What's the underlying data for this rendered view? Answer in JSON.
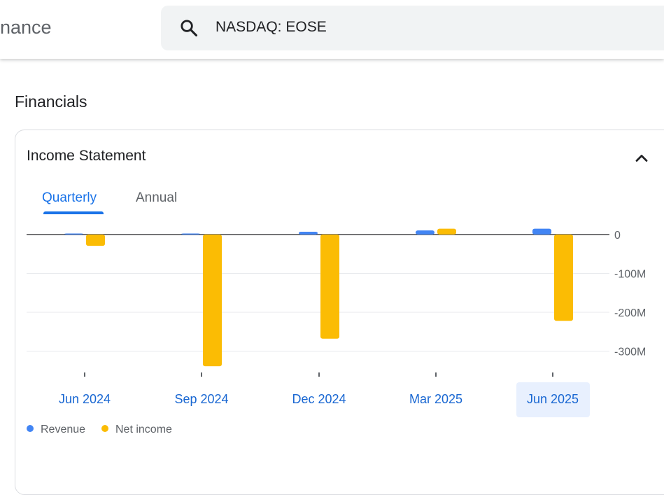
{
  "header": {
    "brand_text": "nance",
    "search_value": "NASDAQ: EOSE"
  },
  "page": {
    "section_title": "Financials"
  },
  "card": {
    "title": "Income Statement",
    "tabs": [
      {
        "label": "Quarterly",
        "selected": true
      },
      {
        "label": "Annual",
        "selected": false
      }
    ]
  },
  "colors": {
    "revenue": "#4285f4",
    "net_income": "#fbbc04",
    "accent": "#1a73e8"
  },
  "chart_data": {
    "type": "bar",
    "categories": [
      "Jun 2024",
      "Sep 2024",
      "Dec 2024",
      "Mar 2025",
      "Jun 2025"
    ],
    "selected_category": "Jun 2025",
    "series": [
      {
        "name": "Revenue",
        "values": [
          0.9,
          0.9,
          7.3,
          10.5,
          15.2
        ]
      },
      {
        "name": "Net income",
        "values": [
          -29.0,
          -339.0,
          -268.0,
          15.0,
          -222.0
        ]
      }
    ],
    "y_ticks": [
      {
        "value": 0,
        "label": "0"
      },
      {
        "value": -100,
        "label": "-100M"
      },
      {
        "value": -200,
        "label": "-200M"
      },
      {
        "value": -300,
        "label": "-300M"
      }
    ],
    "ylim": [
      -350,
      20
    ],
    "grid": true,
    "legend_position": "bottom-left"
  }
}
